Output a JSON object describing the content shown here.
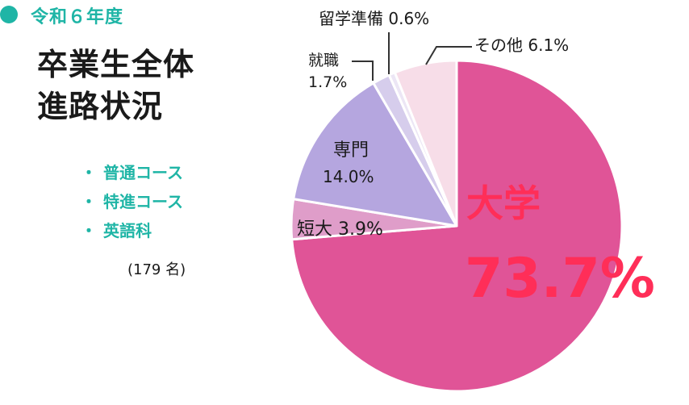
{
  "header": {
    "year": "令和６年度",
    "title_line1": "卒業生全体",
    "title_line2": "進路状況"
  },
  "courses": [
    "普通コース",
    "特進コース",
    "英語科"
  ],
  "count_label": "(179 名)",
  "chart_data": {
    "type": "pie",
    "categories": [
      "大学",
      "短大",
      "専門",
      "就職",
      "留学準備",
      "その他"
    ],
    "values": [
      73.7,
      3.9,
      14.0,
      1.7,
      0.6,
      6.1
    ],
    "labels": {
      "univ_name": "大学",
      "univ_value": "73.7%",
      "tandai": "短大 3.9%",
      "senmon_name": "専門",
      "senmon_value": "14.0%",
      "shushoku_name": "就職",
      "shushoku_value": "1.7%",
      "ryugaku": "留学準備 0.6%",
      "other": "その他 6.1%"
    },
    "colors": [
      "#e05497",
      "#df9dc9",
      "#b5a6df",
      "#d6cdec",
      "#ece6f5",
      "#f7dde8"
    ],
    "start_angle_deg": 0,
    "direction": "clockwise",
    "ylim": [
      0,
      100
    ]
  },
  "colors": {
    "accent": "#1fb5a6",
    "univ_label": "#ff2e58",
    "slice_stroke": "#ffffff"
  }
}
